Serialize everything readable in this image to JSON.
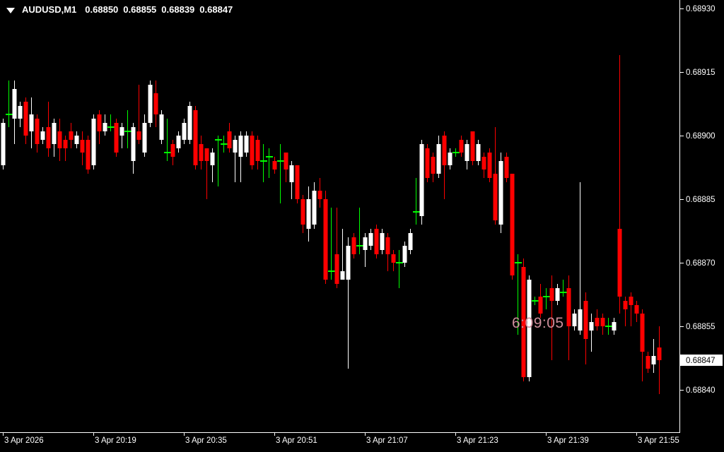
{
  "chart_title": {
    "symbol": "AUDUSD,M1",
    "open": "0.68850",
    "high": "0.68855",
    "low": "0.68839",
    "close": "0.68847"
  },
  "timer": {
    "remaining": "6:09:05"
  },
  "price_axis": {
    "labels": [
      "0.68930",
      "0.68915",
      "0.68900",
      "0.68885",
      "0.68870",
      "0.68855",
      "0.68840"
    ],
    "current": "0.68847"
  },
  "time_axis": {
    "labels": [
      "3 Apr 2026",
      "3 Apr 20:19",
      "3 Apr 20:35",
      "3 Apr 20:51",
      "3 Apr 21:07",
      "3 Apr 21:23",
      "3 Apr 21:39",
      "3 Apr 21:55"
    ]
  },
  "colors": {
    "background": "#000000",
    "bull": "#ffffff",
    "bear": "#ff0000",
    "doji": "#00ff00",
    "axis": "#ffffff",
    "current_price_bg": "#ffffff",
    "current_price_text": "#000000",
    "timer_text": "#cd8e9b"
  },
  "chart_data": {
    "type": "candlestick",
    "symbol": "AUDUSD",
    "timeframe": "M1",
    "date": "3 Apr 2026",
    "grid": false,
    "ylim": [
      0.68836,
      0.68931
    ],
    "y_ticks": [
      0.6893,
      0.68915,
      0.689,
      0.68885,
      0.6887,
      0.68855,
      0.6884
    ],
    "x_tick_labels": [
      "3 Apr 2026",
      "3 Apr 20:19",
      "3 Apr 20:35",
      "3 Apr 20:51",
      "3 Apr 21:07",
      "3 Apr 21:23",
      "3 Apr 21:39",
      "3 Apr 21:55"
    ],
    "current_bid": 0.68847,
    "last_candle": {
      "open": 0.6885,
      "high": 0.68855,
      "low": 0.68839,
      "close": 0.68847
    },
    "candles": [
      {
        "t": "20:03",
        "o": 0.68893,
        "h": 0.68904,
        "l": 0.68892,
        "c": 0.68903
      },
      {
        "t": "20:04",
        "o": 0.68905,
        "h": 0.68913,
        "l": 0.68902,
        "c": 0.68905
      },
      {
        "t": "20:05",
        "o": 0.68904,
        "h": 0.68913,
        "l": 0.68898,
        "c": 0.68911
      },
      {
        "t": "20:06",
        "o": 0.68904,
        "h": 0.68908,
        "l": 0.68902,
        "c": 0.68907
      },
      {
        "t": "20:07",
        "o": 0.68908,
        "h": 0.68909,
        "l": 0.68898,
        "c": 0.689
      },
      {
        "t": "20:08",
        "o": 0.68901,
        "h": 0.68909,
        "l": 0.68897,
        "c": 0.68905
      },
      {
        "t": "20:09",
        "o": 0.68904,
        "h": 0.68905,
        "l": 0.68896,
        "c": 0.68898
      },
      {
        "t": "20:10",
        "o": 0.68899,
        "h": 0.68902,
        "l": 0.68898,
        "c": 0.68901
      },
      {
        "t": "20:11",
        "o": 0.68902,
        "h": 0.68908,
        "l": 0.68895,
        "c": 0.68897
      },
      {
        "t": "20:12",
        "o": 0.68898,
        "h": 0.68904,
        "l": 0.68895,
        "c": 0.68903
      },
      {
        "t": "20:13",
        "o": 0.68901,
        "h": 0.68904,
        "l": 0.68894,
        "c": 0.68897
      },
      {
        "t": "20:14",
        "o": 0.68899,
        "h": 0.689,
        "l": 0.68894,
        "c": 0.68897
      },
      {
        "t": "20:15",
        "o": 0.68901,
        "h": 0.68903,
        "l": 0.68897,
        "c": 0.68899
      },
      {
        "t": "20:16",
        "o": 0.68898,
        "h": 0.68901,
        "l": 0.68897,
        "c": 0.689
      },
      {
        "t": "20:17",
        "o": 0.68899,
        "h": 0.68901,
        "l": 0.68893,
        "c": 0.68896
      },
      {
        "t": "20:18",
        "o": 0.68899,
        "h": 0.689,
        "l": 0.68891,
        "c": 0.68892
      },
      {
        "t": "20:19",
        "o": 0.68893,
        "h": 0.68905,
        "l": 0.68892,
        "c": 0.68904
      },
      {
        "t": "20:20",
        "o": 0.68905,
        "h": 0.68906,
        "l": 0.68898,
        "c": 0.68901
      },
      {
        "t": "20:21",
        "o": 0.68901,
        "h": 0.68905,
        "l": 0.689,
        "c": 0.68903
      },
      {
        "t": "20:22",
        "o": 0.68902,
        "h": 0.68905,
        "l": 0.68901,
        "c": 0.68902
      },
      {
        "t": "20:23",
        "o": 0.68903,
        "h": 0.68904,
        "l": 0.68895,
        "c": 0.68896
      },
      {
        "t": "20:24",
        "o": 0.689,
        "h": 0.68903,
        "l": 0.68897,
        "c": 0.68902
      },
      {
        "t": "20:25",
        "o": 0.68901,
        "h": 0.68906,
        "l": 0.68897,
        "c": 0.68901
      },
      {
        "t": "20:26",
        "o": 0.68894,
        "h": 0.68903,
        "l": 0.68891,
        "c": 0.68902
      },
      {
        "t": "20:27",
        "o": 0.68901,
        "h": 0.68912,
        "l": 0.68898,
        "c": 0.68899
      },
      {
        "t": "20:28",
        "o": 0.68896,
        "h": 0.68905,
        "l": 0.68895,
        "c": 0.68903
      },
      {
        "t": "20:29",
        "o": 0.68903,
        "h": 0.68913,
        "l": 0.68902,
        "c": 0.68912
      },
      {
        "t": "20:30",
        "o": 0.6891,
        "h": 0.68913,
        "l": 0.68902,
        "c": 0.68905
      },
      {
        "t": "20:31",
        "o": 0.68899,
        "h": 0.68906,
        "l": 0.68898,
        "c": 0.68905
      },
      {
        "t": "20:32",
        "o": 0.68896,
        "h": 0.68904,
        "l": 0.68894,
        "c": 0.68896
      },
      {
        "t": "20:33",
        "o": 0.68898,
        "h": 0.68899,
        "l": 0.68893,
        "c": 0.68895
      },
      {
        "t": "20:34",
        "o": 0.68897,
        "h": 0.68901,
        "l": 0.68896,
        "c": 0.689
      },
      {
        "t": "20:35",
        "o": 0.68899,
        "h": 0.68904,
        "l": 0.68898,
        "c": 0.68903
      },
      {
        "t": "20:36",
        "o": 0.68899,
        "h": 0.68908,
        "l": 0.68898,
        "c": 0.68907
      },
      {
        "t": "20:37",
        "o": 0.68906,
        "h": 0.68907,
        "l": 0.68892,
        "c": 0.68893
      },
      {
        "t": "20:38",
        "o": 0.68898,
        "h": 0.689,
        "l": 0.68892,
        "c": 0.68894
      },
      {
        "t": "20:39",
        "o": 0.68897,
        "h": 0.68897,
        "l": 0.68885,
        "c": 0.68894
      },
      {
        "t": "20:40",
        "o": 0.68893,
        "h": 0.68897,
        "l": 0.68889,
        "c": 0.68896
      },
      {
        "t": "20:41",
        "o": 0.68899,
        "h": 0.689,
        "l": 0.68888,
        "c": 0.68899
      },
      {
        "t": "20:42",
        "o": 0.68898,
        "h": 0.689,
        "l": 0.68896,
        "c": 0.68898
      },
      {
        "t": "20:43",
        "o": 0.68901,
        "h": 0.68903,
        "l": 0.68896,
        "c": 0.68897
      },
      {
        "t": "20:44",
        "o": 0.68896,
        "h": 0.689,
        "l": 0.68889,
        "c": 0.68899
      },
      {
        "t": "20:45",
        "o": 0.68895,
        "h": 0.68901,
        "l": 0.68889,
        "c": 0.689
      },
      {
        "t": "20:46",
        "o": 0.68896,
        "h": 0.68901,
        "l": 0.68895,
        "c": 0.689
      },
      {
        "t": "20:47",
        "o": 0.689,
        "h": 0.68901,
        "l": 0.68892,
        "c": 0.68893
      },
      {
        "t": "20:48",
        "o": 0.68899,
        "h": 0.689,
        "l": 0.68892,
        "c": 0.68894
      },
      {
        "t": "20:49",
        "o": 0.68894,
        "h": 0.68898,
        "l": 0.68889,
        "c": 0.68894
      },
      {
        "t": "20:50",
        "o": 0.68895,
        "h": 0.68897,
        "l": 0.6889,
        "c": 0.68895
      },
      {
        "t": "20:51",
        "o": 0.68894,
        "h": 0.68895,
        "l": 0.68891,
        "c": 0.68892
      },
      {
        "t": "20:52",
        "o": 0.68894,
        "h": 0.68898,
        "l": 0.68884,
        "c": 0.68894
      },
      {
        "t": "20:53",
        "o": 0.68896,
        "h": 0.68896,
        "l": 0.68889,
        "c": 0.68892
      },
      {
        "t": "20:54",
        "o": 0.68889,
        "h": 0.68894,
        "l": 0.68885,
        "c": 0.68893
      },
      {
        "t": "20:55",
        "o": 0.68893,
        "h": 0.68893,
        "l": 0.68884,
        "c": 0.68885
      },
      {
        "t": "20:56",
        "o": 0.68885,
        "h": 0.68886,
        "l": 0.68877,
        "c": 0.68879
      },
      {
        "t": "20:57",
        "o": 0.68878,
        "h": 0.68888,
        "l": 0.68875,
        "c": 0.68885
      },
      {
        "t": "20:58",
        "o": 0.68879,
        "h": 0.68889,
        "l": 0.68878,
        "c": 0.68887
      },
      {
        "t": "20:59",
        "o": 0.68887,
        "h": 0.6889,
        "l": 0.68883,
        "c": 0.68885
      },
      {
        "t": "21:00",
        "o": 0.68885,
        "h": 0.68887,
        "l": 0.68865,
        "c": 0.68866
      },
      {
        "t": "21:01",
        "o": 0.68868,
        "h": 0.68883,
        "l": 0.68866,
        "c": 0.68868
      },
      {
        "t": "21:02",
        "o": 0.68872,
        "h": 0.68883,
        "l": 0.68864,
        "c": 0.68865
      },
      {
        "t": "21:03",
        "o": 0.68866,
        "h": 0.68878,
        "l": 0.68866,
        "c": 0.68868
      },
      {
        "t": "21:04",
        "o": 0.68866,
        "h": 0.68876,
        "l": 0.68845,
        "c": 0.68874
      },
      {
        "t": "21:05",
        "o": 0.68876,
        "h": 0.68877,
        "l": 0.68871,
        "c": 0.68872
      },
      {
        "t": "21:06",
        "o": 0.68874,
        "h": 0.68883,
        "l": 0.68872,
        "c": 0.68874
      },
      {
        "t": "21:07",
        "o": 0.68873,
        "h": 0.68877,
        "l": 0.68869,
        "c": 0.68876
      },
      {
        "t": "21:08",
        "o": 0.68874,
        "h": 0.68878,
        "l": 0.68873,
        "c": 0.68877
      },
      {
        "t": "21:09",
        "o": 0.68878,
        "h": 0.68879,
        "l": 0.68871,
        "c": 0.68872
      },
      {
        "t": "21:10",
        "o": 0.68873,
        "h": 0.68878,
        "l": 0.68872,
        "c": 0.68877
      },
      {
        "t": "21:11",
        "o": 0.68876,
        "h": 0.68877,
        "l": 0.68868,
        "c": 0.68872
      },
      {
        "t": "21:12",
        "o": 0.68872,
        "h": 0.68873,
        "l": 0.68868,
        "c": 0.6887
      },
      {
        "t": "21:13",
        "o": 0.6887,
        "h": 0.68873,
        "l": 0.68864,
        "c": 0.6887
      },
      {
        "t": "21:14",
        "o": 0.6887,
        "h": 0.68875,
        "l": 0.68869,
        "c": 0.68874
      },
      {
        "t": "21:15",
        "o": 0.68873,
        "h": 0.68878,
        "l": 0.68872,
        "c": 0.68877
      },
      {
        "t": "21:16",
        "o": 0.68882,
        "h": 0.6889,
        "l": 0.68879,
        "c": 0.68882
      },
      {
        "t": "21:17",
        "o": 0.68881,
        "h": 0.68899,
        "l": 0.68879,
        "c": 0.68898
      },
      {
        "t": "21:18",
        "o": 0.68897,
        "h": 0.68898,
        "l": 0.68889,
        "c": 0.6889
      },
      {
        "t": "21:19",
        "o": 0.68895,
        "h": 0.68896,
        "l": 0.68889,
        "c": 0.68891
      },
      {
        "t": "21:20",
        "o": 0.68891,
        "h": 0.689,
        "l": 0.6889,
        "c": 0.68898
      },
      {
        "t": "21:21",
        "o": 0.689,
        "h": 0.68901,
        "l": 0.68885,
        "c": 0.68893
      },
      {
        "t": "21:22",
        "o": 0.68893,
        "h": 0.68897,
        "l": 0.68892,
        "c": 0.68896
      },
      {
        "t": "21:23",
        "o": 0.68896,
        "h": 0.68897,
        "l": 0.68895,
        "c": 0.68896
      },
      {
        "t": "21:24",
        "o": 0.68899,
        "h": 0.689,
        "l": 0.68895,
        "c": 0.68896
      },
      {
        "t": "21:25",
        "o": 0.68894,
        "h": 0.68899,
        "l": 0.68892,
        "c": 0.68898
      },
      {
        "t": "21:26",
        "o": 0.68901,
        "h": 0.68901,
        "l": 0.68893,
        "c": 0.68894
      },
      {
        "t": "21:27",
        "o": 0.68894,
        "h": 0.68899,
        "l": 0.68893,
        "c": 0.68898
      },
      {
        "t": "21:28",
        "o": 0.68895,
        "h": 0.68896,
        "l": 0.6889,
        "c": 0.68892
      },
      {
        "t": "21:29",
        "o": 0.68896,
        "h": 0.68897,
        "l": 0.68889,
        "c": 0.6889
      },
      {
        "t": "21:30",
        "o": 0.68891,
        "h": 0.68902,
        "l": 0.68879,
        "c": 0.6888
      },
      {
        "t": "21:31",
        "o": 0.68879,
        "h": 0.68896,
        "l": 0.68877,
        "c": 0.68894
      },
      {
        "t": "21:32",
        "o": 0.68895,
        "h": 0.68896,
        "l": 0.68889,
        "c": 0.6889
      },
      {
        "t": "21:33",
        "o": 0.68891,
        "h": 0.68891,
        "l": 0.68866,
        "c": 0.68867
      },
      {
        "t": "21:34",
        "o": 0.6887,
        "h": 0.68872,
        "l": 0.68853,
        "c": 0.6887
      },
      {
        "t": "21:35",
        "o": 0.68869,
        "h": 0.68871,
        "l": 0.68842,
        "c": 0.68843
      },
      {
        "t": "21:36",
        "o": 0.68843,
        "h": 0.68867,
        "l": 0.68842,
        "c": 0.68866
      },
      {
        "t": "21:37",
        "o": 0.68861,
        "h": 0.68862,
        "l": 0.6886,
        "c": 0.68861
      },
      {
        "t": "21:38",
        "o": 0.68862,
        "h": 0.68865,
        "l": 0.68857,
        "c": 0.68858
      },
      {
        "t": "21:39",
        "o": 0.68862,
        "h": 0.68864,
        "l": 0.68859,
        "c": 0.68862
      },
      {
        "t": "21:40",
        "o": 0.68864,
        "h": 0.68867,
        "l": 0.68847,
        "c": 0.68861
      },
      {
        "t": "21:41",
        "o": 0.68861,
        "h": 0.68865,
        "l": 0.6886,
        "c": 0.68864
      },
      {
        "t": "21:42",
        "o": 0.68863,
        "h": 0.68866,
        "l": 0.68862,
        "c": 0.68863
      },
      {
        "t": "21:43",
        "o": 0.68864,
        "h": 0.68867,
        "l": 0.68847,
        "c": 0.68855
      },
      {
        "t": "21:44",
        "o": 0.68855,
        "h": 0.68859,
        "l": 0.68854,
        "c": 0.68858
      },
      {
        "t": "21:45",
        "o": 0.68854,
        "h": 0.68889,
        "l": 0.68853,
        "c": 0.68859
      },
      {
        "t": "21:46",
        "o": 0.68861,
        "h": 0.68863,
        "l": 0.68846,
        "c": 0.68852
      },
      {
        "t": "21:47",
        "o": 0.68854,
        "h": 0.68858,
        "l": 0.68849,
        "c": 0.68856
      },
      {
        "t": "21:48",
        "o": 0.68857,
        "h": 0.68859,
        "l": 0.68854,
        "c": 0.68855
      },
      {
        "t": "21:49",
        "o": 0.68857,
        "h": 0.68858,
        "l": 0.68853,
        "c": 0.68855
      },
      {
        "t": "21:50",
        "o": 0.68855,
        "h": 0.68857,
        "l": 0.68853,
        "c": 0.68855
      },
      {
        "t": "21:51",
        "o": 0.68854,
        "h": 0.68857,
        "l": 0.68853,
        "c": 0.68856
      },
      {
        "t": "21:52",
        "o": 0.68878,
        "h": 0.68919,
        "l": 0.68858,
        "c": 0.68862
      },
      {
        "t": "21:53",
        "o": 0.68861,
        "h": 0.68862,
        "l": 0.68855,
        "c": 0.68859
      },
      {
        "t": "21:54",
        "o": 0.68862,
        "h": 0.68863,
        "l": 0.68855,
        "c": 0.6886
      },
      {
        "t": "21:55",
        "o": 0.6886,
        "h": 0.68861,
        "l": 0.68856,
        "c": 0.68858
      },
      {
        "t": "21:56",
        "o": 0.68858,
        "h": 0.68859,
        "l": 0.68842,
        "c": 0.68849
      },
      {
        "t": "21:57",
        "o": 0.68848,
        "h": 0.68849,
        "l": 0.68844,
        "c": 0.68845
      },
      {
        "t": "21:58",
        "o": 0.68846,
        "h": 0.68852,
        "l": 0.68844,
        "c": 0.68848
      },
      {
        "t": "21:59",
        "o": 0.6885,
        "h": 0.68855,
        "l": 0.68839,
        "c": 0.68847
      }
    ]
  }
}
